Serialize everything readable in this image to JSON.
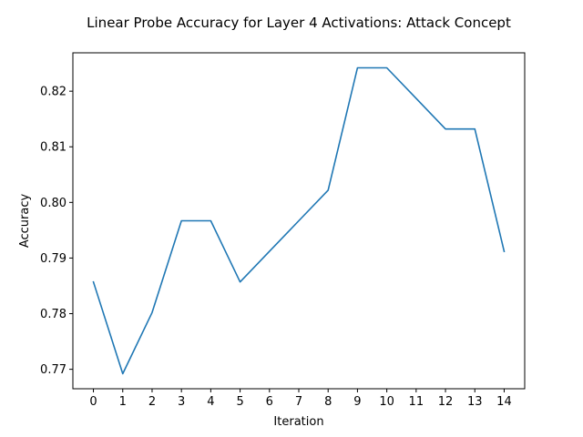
{
  "chart_data": {
    "type": "line",
    "title": "Linear Probe Accuracy for Layer 4 Activations: Attack Concept",
    "xlabel": "Iteration",
    "ylabel": "Accuracy",
    "x": [
      0,
      1,
      2,
      3,
      4,
      5,
      6,
      7,
      8,
      9,
      10,
      11,
      12,
      13,
      14
    ],
    "series": [
      {
        "values": [
          0.7857,
          0.7692,
          0.7802,
          0.7967,
          0.7967,
          0.7857,
          0.7912,
          0.7967,
          0.8022,
          0.8242,
          0.8242,
          0.8187,
          0.8132,
          0.8132,
          0.7912
        ],
        "color": "#1f77b4"
      }
    ],
    "xlim": [
      -0.7,
      14.7
    ],
    "ylim": [
      0.7665,
      0.8269
    ],
    "x_ticks": [
      0,
      1,
      2,
      3,
      4,
      5,
      6,
      7,
      8,
      9,
      10,
      11,
      12,
      13,
      14
    ],
    "y_ticks": [
      0.77,
      0.78,
      0.79,
      0.8,
      0.81,
      0.82
    ],
    "y_tick_labels": [
      "0.77",
      "0.78",
      "0.79",
      "0.80",
      "0.81",
      "0.82"
    ],
    "grid": false,
    "legend": "none"
  }
}
